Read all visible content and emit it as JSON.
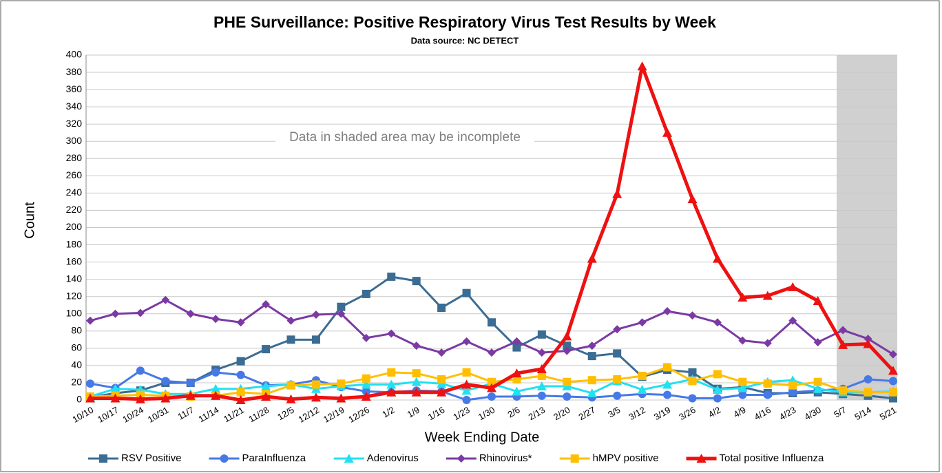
{
  "chart_data": {
    "type": "line",
    "title": "PHE Surveillance: Positive Respiratory Virus Test Results by Week",
    "subtitle": "Data source: NC DETECT",
    "annotation": "Data in shaded area may be incomplete",
    "x_label": "Week Ending Date",
    "y_label": "Count",
    "categories": [
      "10/10",
      "10/17",
      "10/24",
      "10/31",
      "11/7",
      "11/14",
      "11/21",
      "11/28",
      "12/5",
      "12/12",
      "12/19",
      "12/26",
      "1/2",
      "1/9",
      "1/16",
      "1/23",
      "1/30",
      "2/6",
      "2/13",
      "2/20",
      "2/27",
      "3/5",
      "3/12",
      "3/19",
      "3/26",
      "4/2",
      "4/9",
      "4/16",
      "4/23",
      "4/30",
      "5/7",
      "5/14",
      "5/21"
    ],
    "ylim": [
      0,
      400
    ],
    "yticks": [
      0,
      20,
      40,
      60,
      80,
      100,
      120,
      140,
      160,
      180,
      200,
      220,
      240,
      260,
      280,
      300,
      320,
      340,
      360,
      380,
      400
    ],
    "grid": true,
    "legend": "bottom",
    "series": [
      {
        "name": "RSV Positive",
        "color": "#3b6c93",
        "marker": "square",
        "values": [
          3,
          8,
          11,
          20,
          20,
          35,
          45,
          59,
          70,
          70,
          108,
          123,
          143,
          138,
          107,
          124,
          90,
          61,
          76,
          63,
          51,
          54,
          27,
          35,
          32,
          13,
          15,
          8,
          8,
          9,
          7,
          5,
          2
        ]
      },
      {
        "name": "ParaInfluenza",
        "color": "#4678e6",
        "marker": "circle",
        "values": [
          19,
          14,
          34,
          22,
          20,
          32,
          29,
          17,
          18,
          23,
          15,
          10,
          9,
          11,
          10,
          0,
          4,
          4,
          5,
          4,
          3,
          5,
          7,
          6,
          2,
          2,
          6,
          6,
          9,
          11,
          13,
          24,
          22
        ]
      },
      {
        "name": "Adenovirus",
        "color": "#22e0f0",
        "marker": "triangle",
        "values": [
          4,
          13,
          12,
          7,
          7,
          13,
          13,
          16,
          18,
          13,
          16,
          18,
          18,
          21,
          19,
          11,
          19,
          10,
          16,
          16,
          8,
          22,
          12,
          18,
          24,
          12,
          14,
          21,
          23,
          13,
          9,
          9,
          10
        ]
      },
      {
        "name": "Rhinovirus*",
        "color": "#7b3aa3",
        "marker": "diamond",
        "values": [
          92,
          100,
          101,
          116,
          100,
          94,
          90,
          111,
          92,
          99,
          100,
          72,
          77,
          63,
          55,
          68,
          55,
          68,
          55,
          57,
          63,
          82,
          90,
          103,
          98,
          90,
          69,
          66,
          92,
          67,
          81,
          71,
          53
        ]
      },
      {
        "name": "hMPV positive",
        "color": "#ffbf00",
        "marker": "square",
        "values": [
          4,
          5,
          6,
          5,
          4,
          5,
          9,
          7,
          17,
          18,
          19,
          25,
          32,
          31,
          24,
          32,
          21,
          24,
          28,
          21,
          23,
          24,
          28,
          38,
          22,
          30,
          21,
          19,
          17,
          21,
          11,
          9,
          9
        ]
      },
      {
        "name": "Total positive Influenza",
        "color": "#ee1111",
        "marker": "triangle",
        "thick": true,
        "values": [
          2,
          2,
          1,
          2,
          5,
          5,
          0,
          4,
          1,
          3,
          2,
          4,
          9,
          9,
          9,
          18,
          14,
          31,
          36,
          74,
          164,
          239,
          387,
          310,
          233,
          164,
          119,
          121,
          131,
          115,
          64,
          65,
          34
        ]
      }
    ]
  }
}
